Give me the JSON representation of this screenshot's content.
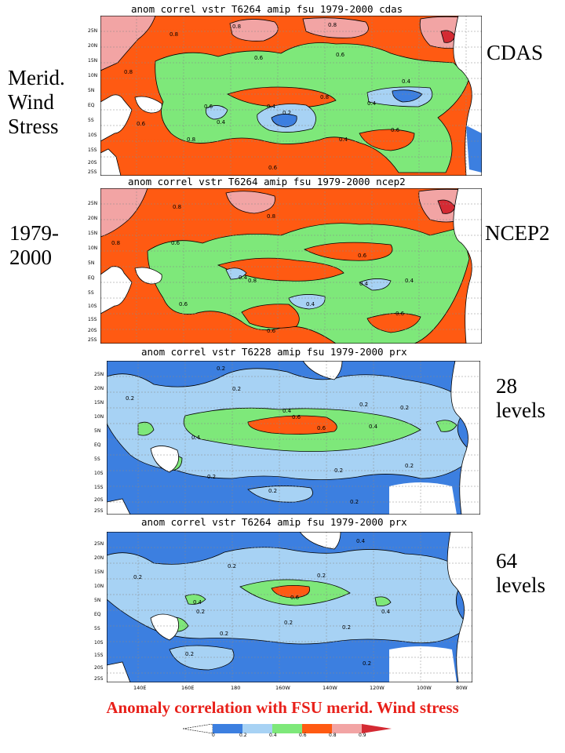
{
  "side_labels": {
    "merid": "Merid.\nWind\nStress",
    "cdas": "CDAS",
    "years": "1979-\n2000",
    "ncep2": "NCEP2",
    "l28": "28\nlevels",
    "l64": "64\nlevels"
  },
  "panels": [
    {
      "title": "anom correl vstr T6264 amip fsu 1979-2000 cdas"
    },
    {
      "title": "anom correl vstr T6264 amip fsu 1979-2000 ncep2"
    },
    {
      "title": "anom correl vstr T6228 amip fsu 1979-2000 prx"
    },
    {
      "title": "anom correl vstr T6264 amip fsu 1979-2000 prx"
    }
  ],
  "latitudes": [
    "25N",
    "20N",
    "15N",
    "10N",
    "5N",
    "EQ",
    "5S",
    "10S",
    "15S",
    "20S",
    "25S"
  ],
  "longitudes": [
    "140E",
    "160E",
    "180",
    "160W",
    "140W",
    "120W",
    "100W",
    "80W"
  ],
  "contour_labels": {
    "p1": [
      "0.8",
      "0.8",
      "0.8",
      "0.6",
      "0.8",
      "0.6",
      "0.6",
      "0.4",
      "0.2",
      "0.8",
      "0.4",
      "0.4",
      "0.4",
      "0.6",
      "0.8",
      "0.4",
      "0.6",
      "0.6"
    ],
    "p2": [
      "0.8",
      "0.8",
      "0.6",
      "0.8",
      "0.6",
      "0.4",
      "0.8",
      "0.4",
      "0.4",
      "0.6",
      "0.6",
      "0.4",
      "0.6"
    ],
    "p3": [
      "0.2",
      "0.2",
      "0.2",
      "0.4",
      "0.6",
      "0.4",
      "0.6",
      "0.4",
      "0.2",
      "0.2",
      "0.2",
      "0.2",
      "0.2",
      "0.2",
      "0.2"
    ],
    "p4": [
      "0.2",
      "0.4",
      "0.2",
      "0.2",
      "0.6",
      "0.4",
      "0.2",
      "0.2",
      "0.2",
      "0.2",
      "0.2",
      "0.2",
      "0.4"
    ]
  },
  "colorbar": {
    "labels": [
      "0",
      "0.2",
      "0.4",
      "0.6",
      "0.8",
      "0.9"
    ],
    "colors": [
      "#ffffff",
      "#3c7fe0",
      "#a7d2f4",
      "#7ee87a",
      "#ff5a12",
      "#f2a4a4",
      "#d42a33"
    ]
  },
  "footer": "Anomaly correlation with FSU merid. Wind stress"
}
